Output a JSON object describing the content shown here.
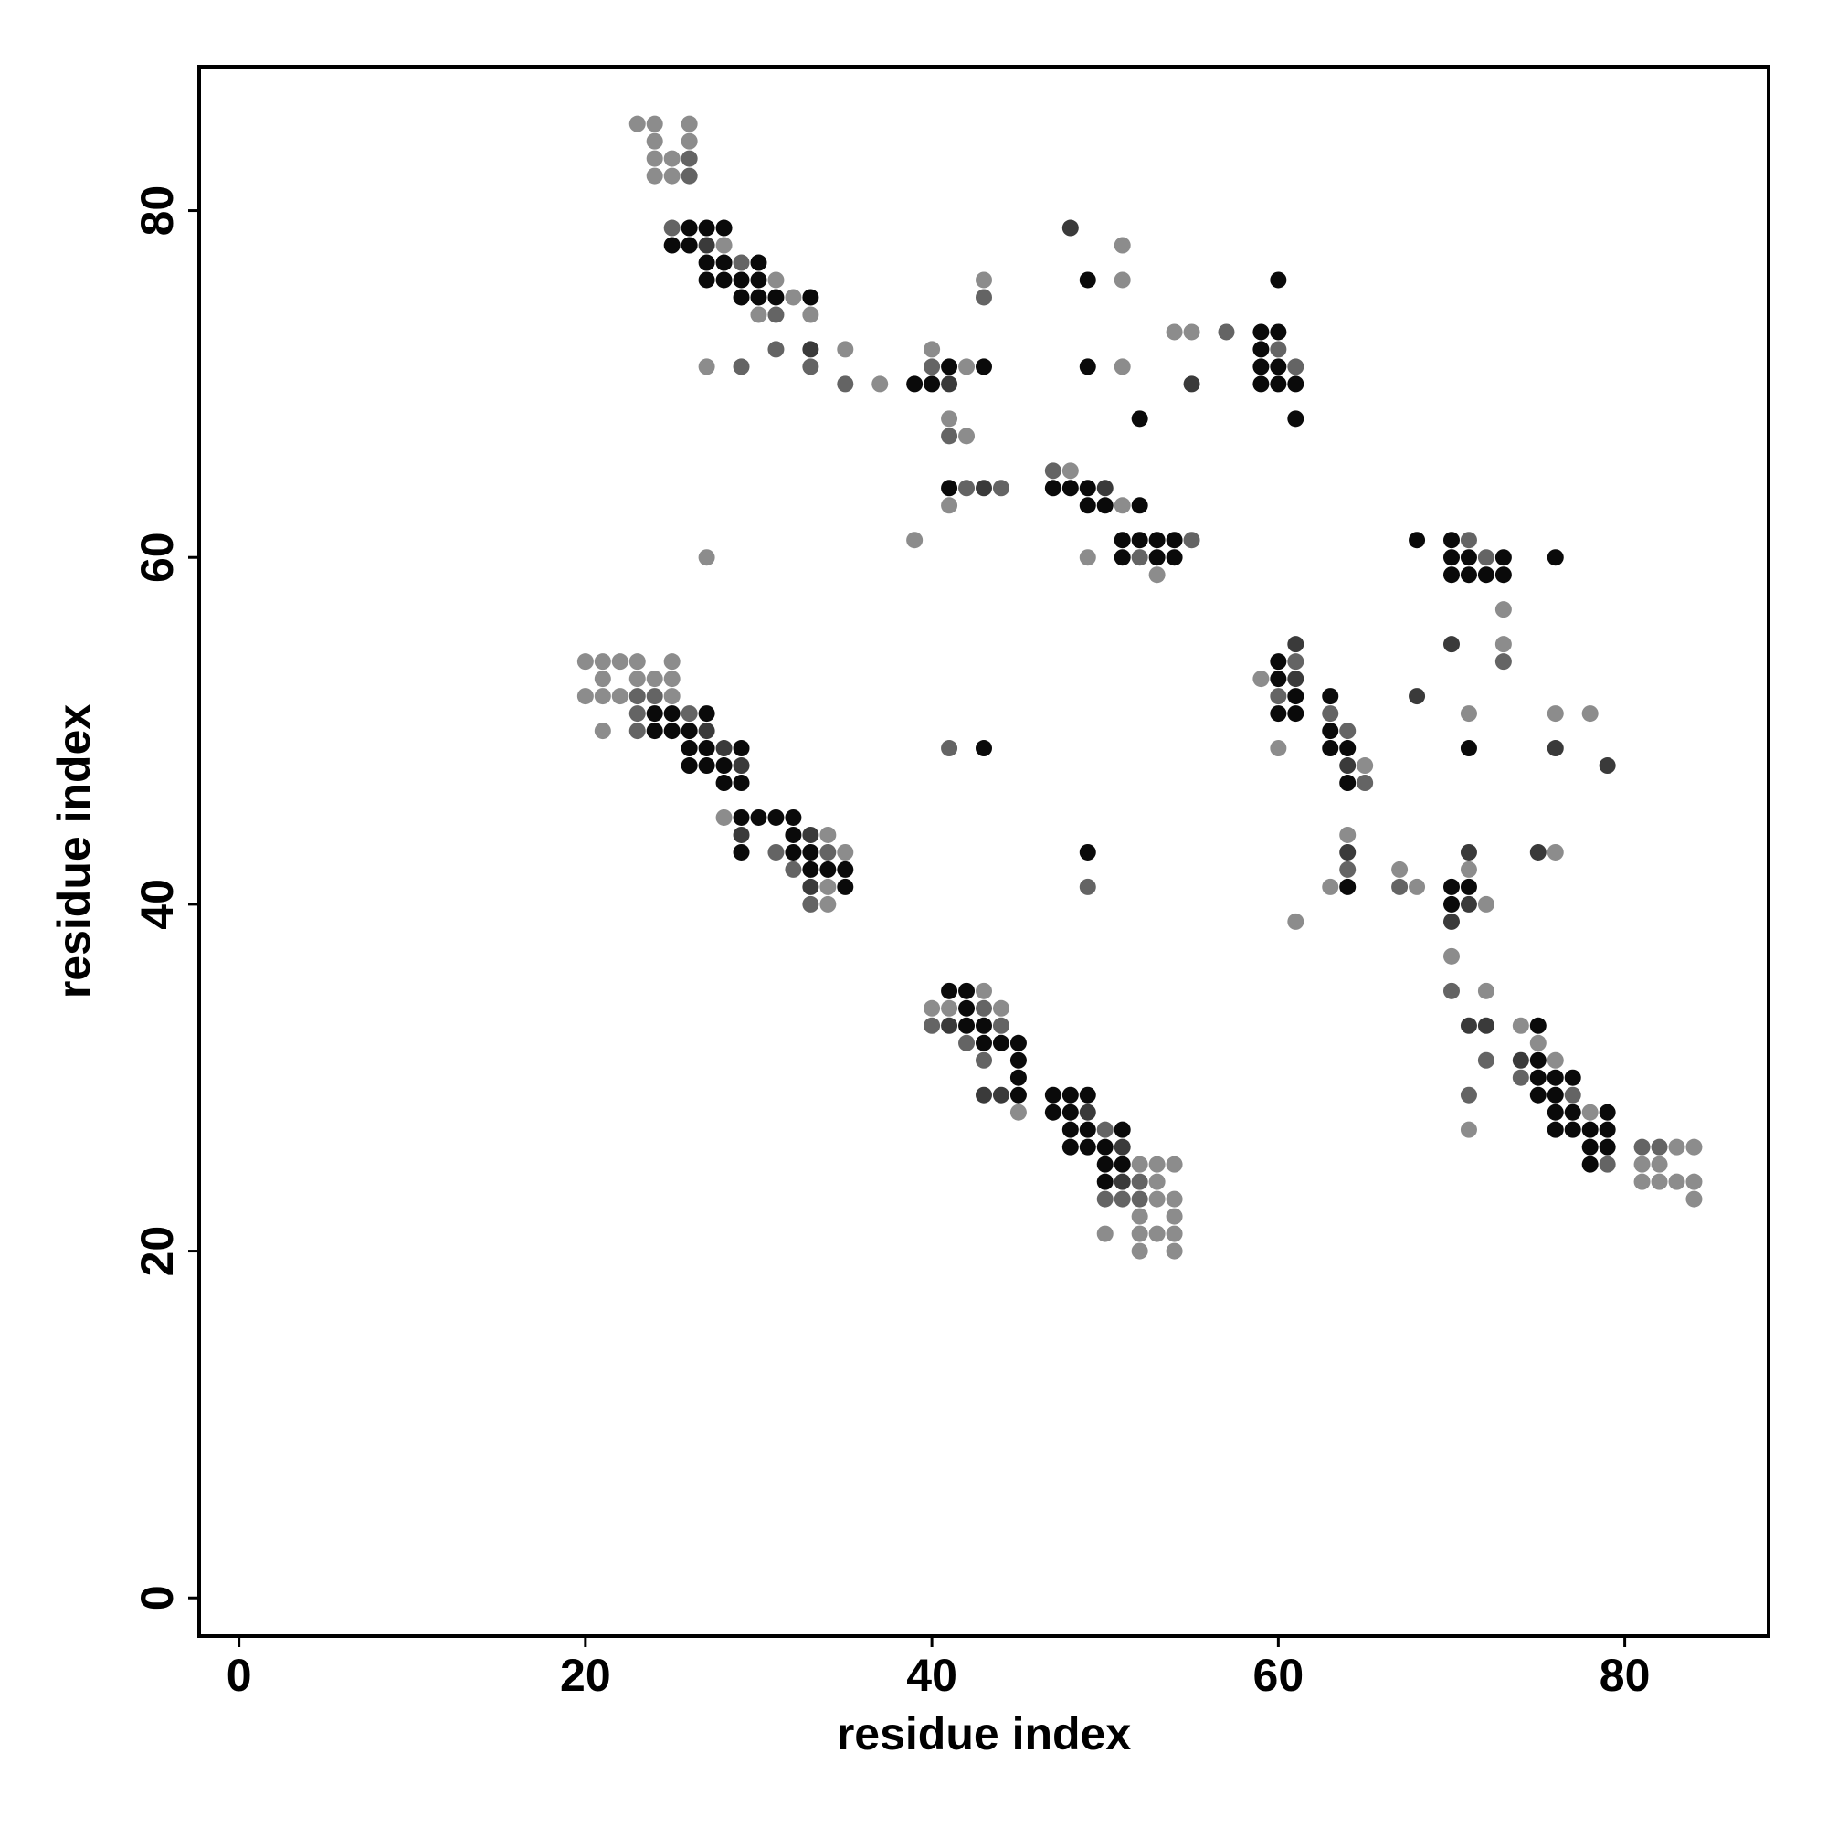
{
  "chart_data": {
    "type": "scatter",
    "xlabel": "residue index",
    "ylabel": "residue index",
    "xlim": [
      -2.3,
      88.3
    ],
    "ylim": [
      -2.2,
      88.3
    ],
    "xticks": [
      0,
      20,
      40,
      60,
      80
    ],
    "yticks": [
      0,
      20,
      40,
      60,
      80
    ],
    "series": [
      {
        "color": "#0a0a0a",
        "x": [
          26,
          27,
          28,
          25,
          26,
          27,
          28,
          30,
          27,
          28,
          29,
          30,
          29,
          30,
          31,
          33,
          41,
          43,
          39,
          40,
          41,
          49,
          60,
          59,
          60,
          59,
          49,
          59,
          60,
          59,
          60,
          61,
          52,
          61,
          47,
          48,
          49,
          49,
          50,
          52,
          51,
          52,
          53,
          54,
          51,
          53,
          54,
          68,
          70,
          70,
          71,
          73,
          76,
          70,
          71,
          72,
          73,
          60,
          60,
          61,
          63,
          60,
          61,
          63,
          63,
          64,
          71,
          64,
          64,
          70,
          71,
          70,
          75,
          75,
          75,
          76,
          77,
          75,
          76,
          76,
          77,
          79,
          76,
          77,
          78,
          79,
          78,
          79,
          78,
          24,
          25,
          27,
          24,
          25,
          26,
          26,
          27,
          29,
          26,
          27,
          28,
          28,
          29,
          29,
          30,
          31,
          32,
          32,
          29,
          32,
          33,
          33,
          34,
          35,
          35,
          43,
          49,
          41,
          42,
          42,
          42,
          43,
          43,
          44,
          45,
          45,
          45,
          45,
          47,
          48,
          49,
          47,
          48,
          48,
          49,
          51,
          48,
          49,
          50,
          50,
          51,
          50
        ],
        "values": [
          79,
          79,
          79,
          78,
          78,
          77,
          77,
          77,
          76,
          76,
          76,
          76,
          75,
          75,
          75,
          75,
          71,
          71,
          70,
          70,
          64,
          76,
          76,
          73,
          73,
          72,
          71,
          71,
          71,
          70,
          70,
          70,
          68,
          68,
          64,
          64,
          64,
          63,
          63,
          63,
          61,
          61,
          61,
          61,
          60,
          60,
          60,
          61,
          61,
          60,
          60,
          60,
          60,
          59,
          59,
          59,
          59,
          54,
          53,
          52,
          52,
          51,
          51,
          50,
          49,
          49,
          49,
          47,
          41,
          41,
          41,
          40,
          33,
          31,
          30,
          30,
          30,
          29,
          29,
          28,
          28,
          28,
          27,
          27,
          27,
          27,
          26,
          26,
          25,
          51,
          51,
          51,
          50,
          50,
          50,
          49,
          49,
          49,
          48,
          48,
          48,
          47,
          47,
          45,
          45,
          45,
          45,
          44,
          43,
          43,
          43,
          42,
          42,
          42,
          41,
          49,
          43,
          35,
          35,
          34,
          33,
          33,
          32,
          32,
          32,
          31,
          30,
          29,
          29,
          29,
          29,
          28,
          28,
          27,
          27,
          27,
          26,
          26,
          26,
          25,
          25,
          24
        ]
      },
      {
        "color": "#3a3a3a",
        "x": [
          27,
          33,
          41,
          43,
          48,
          55,
          50,
          70,
          61,
          61,
          68,
          27,
          76,
          64,
          79,
          64,
          71,
          75,
          71,
          70,
          71,
          72,
          74,
          28,
          29,
          29,
          33,
          33,
          41,
          43,
          44,
          49,
          51,
          51
        ],
        "values": [
          78,
          72,
          70,
          64,
          79,
          70,
          64,
          55,
          55,
          53,
          52,
          50,
          49,
          48,
          48,
          43,
          43,
          43,
          40,
          39,
          33,
          33,
          31,
          49,
          48,
          44,
          44,
          41,
          33,
          29,
          29,
          28,
          26,
          24
        ]
      },
      {
        "color": "#646464",
        "x": [
          26,
          26,
          25,
          29,
          31,
          31,
          29,
          33,
          35,
          40,
          41,
          43,
          42,
          44,
          57,
          60,
          61,
          47,
          55,
          52,
          71,
          72,
          73,
          61,
          60,
          63,
          64,
          65,
          64,
          67,
          70,
          72,
          74,
          71,
          77,
          81,
          82,
          79,
          23,
          24,
          23,
          26,
          23,
          31,
          34,
          32,
          33,
          41,
          49,
          43,
          40,
          44,
          42,
          43,
          50,
          52,
          50,
          51,
          52
        ],
        "values": [
          83,
          82,
          79,
          77,
          74,
          72,
          71,
          71,
          70,
          71,
          67,
          75,
          64,
          64,
          73,
          72,
          71,
          65,
          61,
          60,
          61,
          60,
          54,
          54,
          52,
          51,
          50,
          47,
          42,
          41,
          35,
          31,
          30,
          29,
          29,
          26,
          26,
          25,
          52,
          52,
          51,
          51,
          50,
          43,
          43,
          42,
          40,
          49,
          41,
          34,
          33,
          33,
          32,
          31,
          27,
          24,
          23,
          23,
          23
        ]
      },
      {
        "color": "#8c8c8c",
        "x": [
          23,
          24,
          26,
          24,
          26,
          24,
          25,
          24,
          25,
          28,
          31,
          32,
          30,
          33,
          35,
          27,
          37,
          40,
          42,
          41,
          42,
          43,
          41,
          39,
          27,
          51,
          51,
          54,
          55,
          51,
          48,
          51,
          49,
          53,
          73,
          73,
          59,
          71,
          76,
          78,
          60,
          65,
          64,
          76,
          67,
          71,
          63,
          68,
          72,
          61,
          70,
          72,
          74,
          75,
          76,
          78,
          71,
          83,
          84,
          81,
          82,
          81,
          82,
          83,
          84,
          84,
          20,
          21,
          22,
          23,
          25,
          21,
          23,
          24,
          25,
          20,
          21,
          22,
          25,
          21,
          28,
          34,
          35,
          34,
          34,
          43,
          40,
          41,
          44,
          45,
          52,
          53,
          54,
          53,
          53,
          54,
          52,
          54,
          50,
          52,
          53,
          54,
          52,
          54
        ],
        "values": [
          85,
          85,
          85,
          84,
          84,
          83,
          83,
          82,
          82,
          78,
          76,
          75,
          74,
          74,
          72,
          71,
          70,
          72,
          71,
          68,
          67,
          76,
          63,
          61,
          60,
          78,
          76,
          73,
          73,
          71,
          65,
          63,
          60,
          59,
          57,
          55,
          53,
          51,
          51,
          51,
          49,
          48,
          44,
          43,
          42,
          42,
          41,
          41,
          40,
          39,
          37,
          35,
          33,
          32,
          31,
          28,
          27,
          26,
          26,
          25,
          25,
          24,
          24,
          24,
          24,
          23,
          54,
          54,
          54,
          54,
          54,
          53,
          53,
          53,
          53,
          52,
          52,
          52,
          52,
          50,
          45,
          44,
          43,
          41,
          40,
          35,
          34,
          34,
          34,
          28,
          25,
          25,
          25,
          24,
          23,
          23,
          22,
          22,
          21,
          21,
          21,
          21,
          20,
          20
        ]
      }
    ]
  }
}
